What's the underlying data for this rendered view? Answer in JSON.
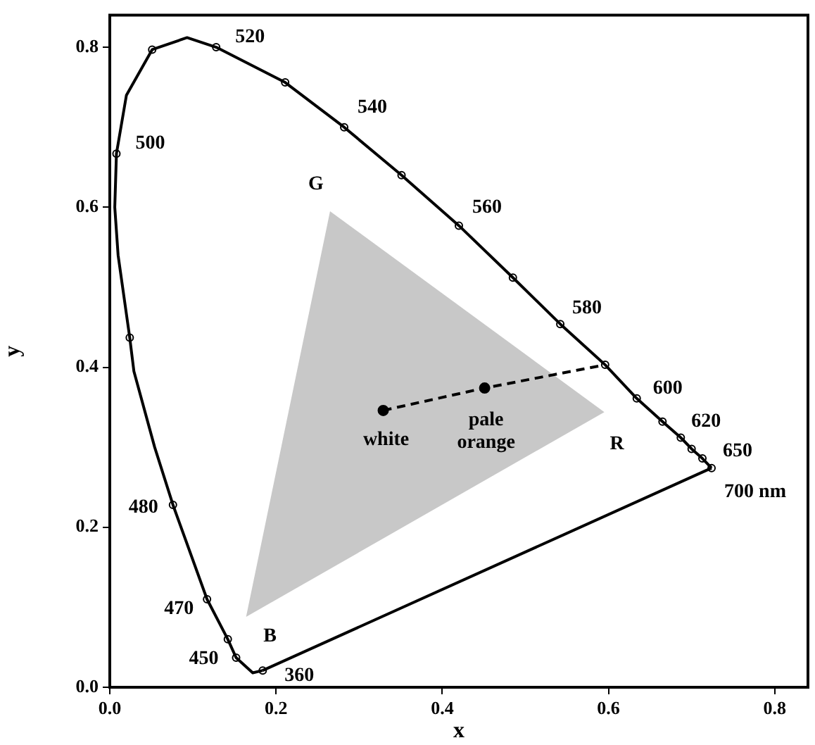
{
  "chart_data": {
    "type": "line",
    "xlabel": "x",
    "ylabel": "y",
    "xlim": [
      0,
      0.84
    ],
    "ylim": [
      0,
      0.84
    ],
    "xticks": [
      {
        "value": 0,
        "label": "0.0"
      },
      0.2,
      0.4,
      0.6,
      0.8
    ],
    "yticks": [
      {
        "value": 0,
        "label": "0.0"
      },
      0.2,
      0.4,
      0.6,
      0.8
    ],
    "grid": false,
    "legend": false,
    "series": [
      {
        "color": "#000000",
        "marker": "none",
        "x": [
          0.184,
          0.172,
          0.152,
          0.142,
          0.117,
          0.076,
          0.054,
          0.029,
          0.024,
          0.01,
          0.006,
          0.008,
          0.02,
          0.051,
          0.093,
          0.128,
          0.211,
          0.282,
          0.351,
          0.42,
          0.485,
          0.542,
          0.596,
          0.634,
          0.665,
          0.687,
          0.7,
          0.713,
          0.724
        ],
        "values": [
          0.021,
          0.018,
          0.037,
          0.06,
          0.11,
          0.228,
          0.3,
          0.395,
          0.437,
          0.54,
          0.6,
          0.667,
          0.74,
          0.797,
          0.812,
          0.8,
          0.756,
          0.7,
          0.64,
          0.577,
          0.512,
          0.454,
          0.403,
          0.361,
          0.332,
          0.312,
          0.298,
          0.286,
          0.274
        ]
      },
      {
        "color": "#000000",
        "marker": "none",
        "x": [
          0.724,
          0.184
        ],
        "values": [
          0.274,
          0.021
        ]
      },
      {
        "type": "scatter",
        "color": "#000000",
        "marker": "circle",
        "x": [
          0.184,
          0.152,
          0.142,
          0.117,
          0.076,
          0.024,
          0.008,
          0.051,
          0.128,
          0.211,
          0.282,
          0.351,
          0.42,
          0.485,
          0.542,
          0.596,
          0.634,
          0.665,
          0.687,
          0.7,
          0.713,
          0.724
        ],
        "values": [
          0.021,
          0.037,
          0.06,
          0.11,
          0.228,
          0.437,
          0.667,
          0.797,
          0.8,
          0.756,
          0.7,
          0.64,
          0.577,
          0.512,
          0.454,
          0.403,
          0.361,
          0.332,
          0.312,
          0.298,
          0.286,
          0.274
        ]
      },
      {
        "color": "#000000",
        "marker": "none",
        "line_style": "dashed",
        "x": [
          0.329,
          0.451,
          0.596
        ],
        "values": [
          0.346,
          0.374,
          0.403
        ]
      },
      {
        "type": "scatter",
        "color": "#000000",
        "marker": "circle",
        "x": [
          0.329,
          0.451
        ],
        "values": [
          0.346,
          0.374
        ]
      },
      {
        "type": "area",
        "color": "#c8c8c8",
        "x": [
          0.265,
          0.595,
          0.164
        ],
        "values": [
          0.595,
          0.344,
          0.088
        ]
      }
    ],
    "annotations": [
      {
        "text": "500",
        "x": 0.008,
        "y": 0.667
      },
      {
        "text": "520",
        "x": 0.128,
        "y": 0.8
      },
      {
        "text": "540",
        "x": 0.282,
        "y": 0.7
      },
      {
        "text": "560",
        "x": 0.42,
        "y": 0.577
      },
      {
        "text": "580",
        "x": 0.542,
        "y": 0.454
      },
      {
        "text": "600",
        "x": 0.634,
        "y": 0.361
      },
      {
        "text": "620",
        "x": 0.665,
        "y": 0.332
      },
      {
        "text": "650",
        "x": 0.713,
        "y": 0.286
      },
      {
        "text": "700 nm",
        "x": 0.724,
        "y": 0.274
      },
      {
        "text": "480",
        "x": 0.076,
        "y": 0.228
      },
      {
        "text": "470",
        "x": 0.117,
        "y": 0.11
      },
      {
        "text": "450",
        "x": 0.152,
        "y": 0.037
      },
      {
        "text": "360",
        "x": 0.184,
        "y": 0.021
      },
      {
        "text": "G",
        "x": 0.265,
        "y": 0.595
      },
      {
        "text": "R",
        "x": 0.595,
        "y": 0.344
      },
      {
        "text": "B",
        "x": 0.164,
        "y": 0.088
      },
      {
        "text": "white",
        "x": 0.329,
        "y": 0.346
      },
      {
        "text": "pale\norange",
        "x": 0.451,
        "y": 0.374
      }
    ]
  }
}
